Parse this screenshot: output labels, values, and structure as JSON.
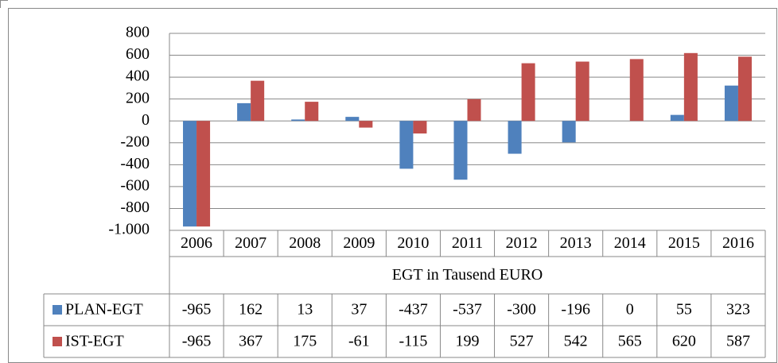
{
  "chart_data": {
    "type": "bar",
    "x_label": "EGT in Tausend EURO",
    "categories": [
      "2006",
      "2007",
      "2008",
      "2009",
      "2010",
      "2011",
      "2012",
      "2013",
      "2014",
      "2015",
      "2016"
    ],
    "series": [
      {
        "name": "PLAN-EGT",
        "color": "#4f81bd",
        "values": [
          -965,
          162,
          13,
          37,
          -437,
          -537,
          -300,
          -196,
          0,
          55,
          323
        ]
      },
      {
        "name": "IST-EGT",
        "color": "#c0504d",
        "values": [
          -965,
          367,
          175,
          -61,
          -115,
          199,
          527,
          542,
          565,
          620,
          587
        ]
      }
    ],
    "ylim": [
      -1000,
      800
    ],
    "yticks": [
      {
        "value": -1000,
        "label": "-1.000"
      },
      -800,
      -600,
      -400,
      -200,
      0,
      200,
      400,
      600,
      800
    ],
    "grid": true,
    "data_table": true
  }
}
